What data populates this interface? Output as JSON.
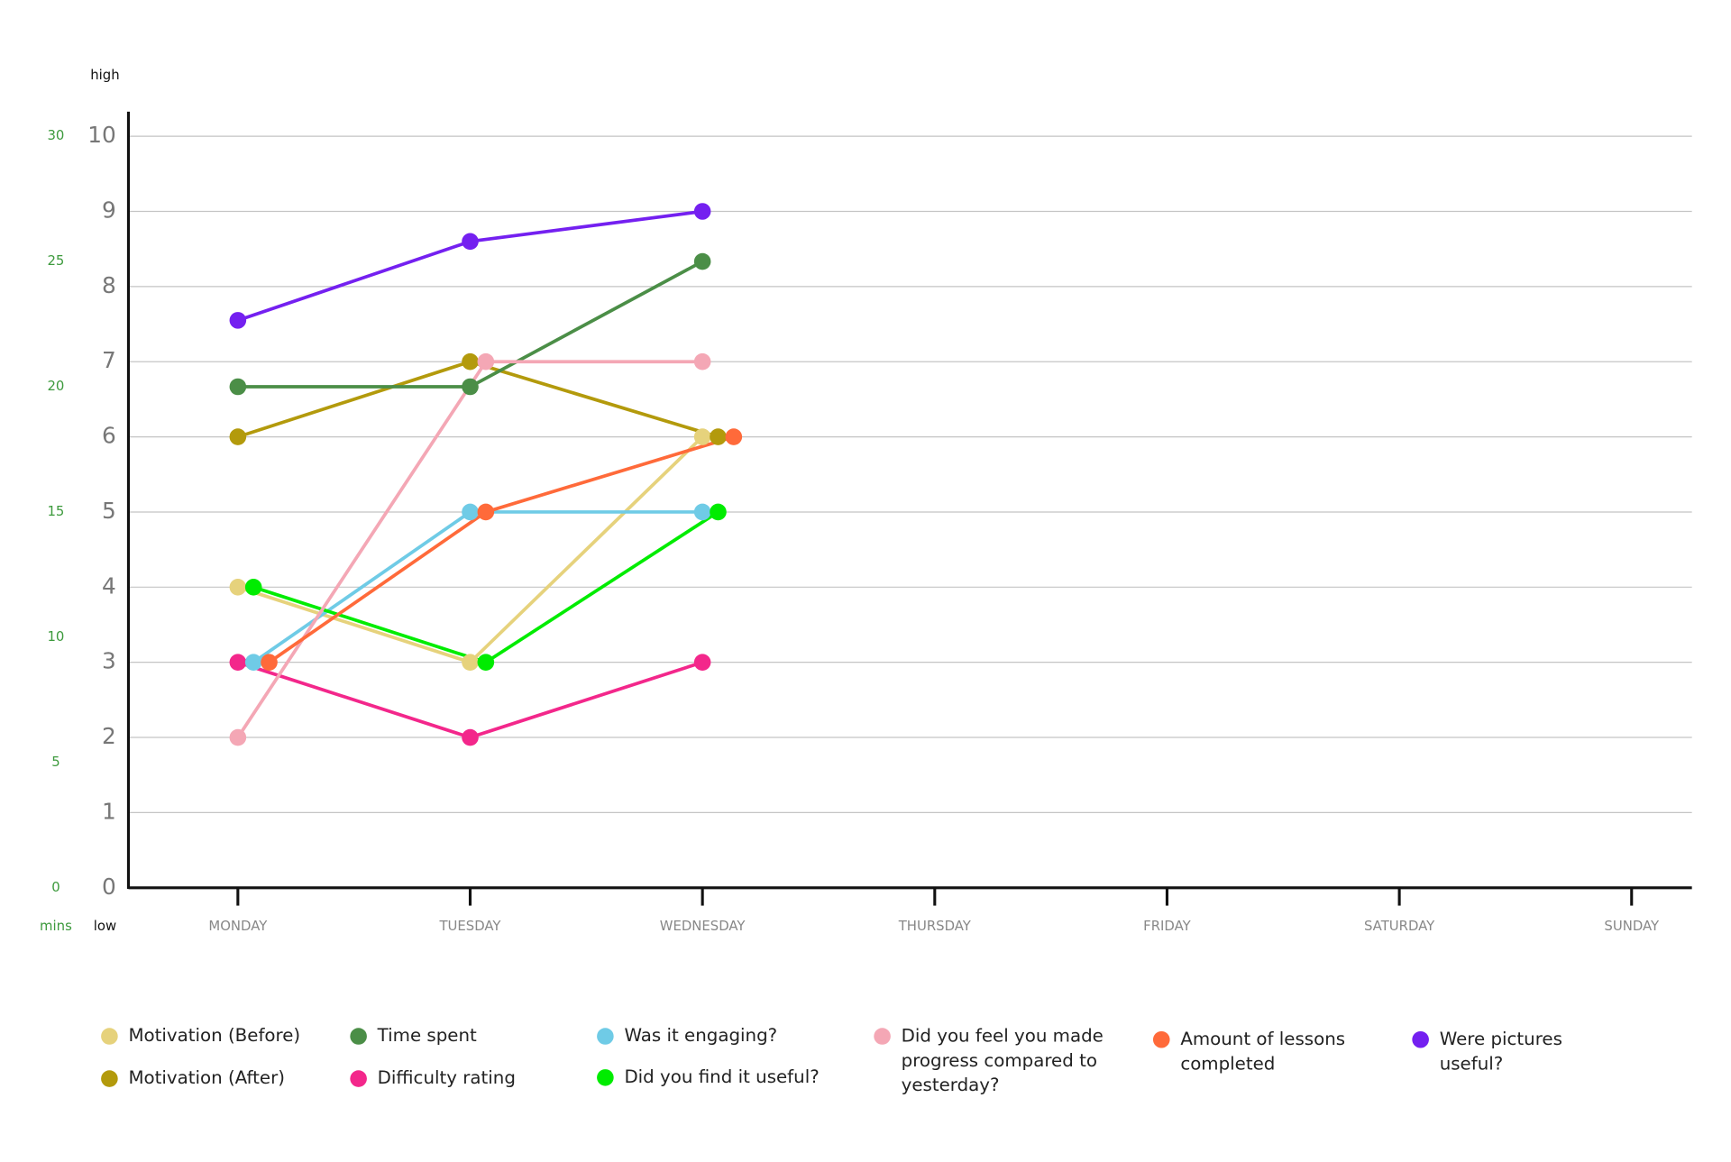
{
  "chart_data": {
    "type": "line",
    "y_axis_top_label": "high",
    "y_axis_bottom_label": "low",
    "y2_label": "mins",
    "categories": [
      "MONDAY",
      "TUESDAY",
      "WEDNESDAY",
      "THURSDAY",
      "FRIDAY",
      "SATURDAY",
      "SUNDAY"
    ],
    "ylim": [
      0,
      10
    ],
    "yticks": [
      0,
      1,
      2,
      3,
      4,
      5,
      6,
      7,
      8,
      9,
      10
    ],
    "y2lim": [
      0,
      30
    ],
    "y2ticks": [
      0,
      5,
      10,
      15,
      20,
      25,
      30
    ],
    "grid": true,
    "legend": "bottom",
    "series": [
      {
        "name": "Motivation (Before)",
        "color": "#e6d27c",
        "values": [
          4,
          3,
          6,
          null,
          null,
          null,
          null
        ]
      },
      {
        "name": "Motivation (After)",
        "color": "#b39a0c",
        "values": [
          6,
          7,
          6,
          null,
          null,
          null,
          null
        ]
      },
      {
        "name": "Time spent",
        "color": "#4b8e47",
        "axis": "y2",
        "values": [
          20,
          20,
          25,
          null,
          null,
          null,
          null
        ]
      },
      {
        "name": "Difficulty rating",
        "color": "#f3278b",
        "values": [
          3,
          2,
          3,
          null,
          null,
          null,
          null
        ]
      },
      {
        "name": "Was it engaging?",
        "color": "#6fcbe6",
        "values": [
          3,
          5,
          5,
          null,
          null,
          null,
          null
        ]
      },
      {
        "name": "Did you find it useful?",
        "color": "#00ec00",
        "values": [
          4,
          3,
          5,
          null,
          null,
          null,
          null
        ]
      },
      {
        "name": "Did you feel you made progress compared to yesterday?",
        "color": "#f4a7b5",
        "values": [
          2,
          7,
          7,
          null,
          null,
          null,
          null
        ]
      },
      {
        "name": "Amount of lessons completed",
        "color": "#ff6a3a",
        "values": [
          3,
          5,
          6,
          null,
          null,
          null,
          null
        ]
      },
      {
        "name": "Were pictures useful?",
        "color": "#7420f0",
        "values": [
          7.55,
          8.6,
          9,
          null,
          null,
          null,
          null
        ]
      }
    ]
  }
}
